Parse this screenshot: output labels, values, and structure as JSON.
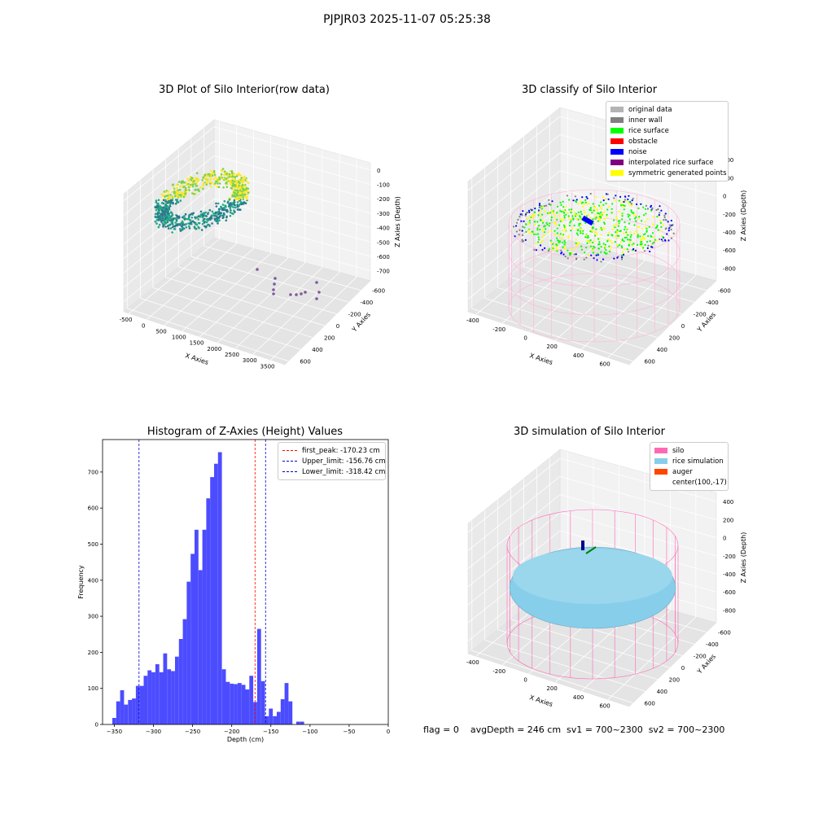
{
  "figure": {
    "suptitle": "PJPJR03 2025-11-07 05:25:38",
    "footer": "flag = 0    avgDepth = 246 cm  sv1 = 700~2300  sv2 = 700~2300"
  },
  "chart_data": [
    {
      "type": "scatter",
      "subtype": "3d",
      "title": "3D Plot of Silo Interior(row data)",
      "xlabel": "X Axies",
      "ylabel": "Y Axies",
      "zlabel": "Z Axies (Depth)",
      "x_ticks": [
        "-500",
        "0",
        "500",
        "1000",
        "1500",
        "2000",
        "2500",
        "3000",
        "3500"
      ],
      "y_ticks": [
        "-600",
        "-400",
        "-200",
        "0",
        "200",
        "400",
        "600"
      ],
      "z_ticks": [
        "0",
        "-100",
        "-200",
        "-300",
        "-400",
        "-500",
        "-600",
        "-700"
      ],
      "colormap": [
        "#fde725",
        "#7ad151",
        "#22a884",
        "#2a788e"
      ],
      "outlier_color": "#7e5a9b"
    },
    {
      "type": "scatter",
      "subtype": "3d",
      "title": "3D classify of Silo Interior",
      "xlabel": "X Axies",
      "ylabel": "Y Axies",
      "zlabel": "Z Axies (Depth)",
      "x_ticks": [
        "-400",
        "-200",
        "0",
        "200",
        "400",
        "600"
      ],
      "y_ticks": [
        "-600",
        "-400",
        "-200",
        "0",
        "200",
        "400",
        "600"
      ],
      "z_ticks": [
        "400",
        "200",
        "0",
        "-200",
        "-400",
        "-600",
        "-800"
      ],
      "legend": [
        {
          "name": "original data",
          "color": "#b3b3b3"
        },
        {
          "name": "inner wall",
          "color": "#808080"
        },
        {
          "name": "rice surface",
          "color": "#00ff00"
        },
        {
          "name": "obstacle",
          "color": "#ff0000"
        },
        {
          "name": "noise",
          "color": "#0000ff"
        },
        {
          "name": "interpolated rice surface",
          "color": "#800080"
        },
        {
          "name": "symmetric generated points",
          "color": "#ffff00"
        }
      ],
      "wire_color": "#ffb6d9"
    },
    {
      "type": "bar",
      "subtype": "histogram",
      "title": "Histogram of Z-Axies (Height) Values",
      "xlabel": "Depth (cm)",
      "ylabel": "Frequency",
      "xlim": [
        -365,
        0
      ],
      "ylim": [
        0,
        790
      ],
      "x_ticks": [
        -350,
        -300,
        -250,
        -200,
        -150,
        -100,
        -50,
        0
      ],
      "y_ticks": [
        0,
        100,
        200,
        300,
        400,
        500,
        600,
        700
      ],
      "bin_start": -352.5,
      "bin_width": 5,
      "values": [
        18,
        64,
        95,
        55,
        68,
        72,
        107,
        107,
        135,
        150,
        145,
        167,
        145,
        197,
        153,
        148,
        188,
        237,
        292,
        396,
        473,
        540,
        428,
        540,
        627,
        686,
        723,
        755,
        153,
        118,
        113,
        112,
        115,
        110,
        97,
        135,
        62,
        265,
        120,
        23,
        44,
        23,
        35,
        70,
        115,
        64,
        0,
        8,
        8
      ],
      "bar_color": "#4c4cff",
      "lines": [
        {
          "label": "first_peak: -170.23 cm",
          "x": -170.23,
          "color": "#ff0000"
        },
        {
          "label": "Upper_limit: -156.76 cm",
          "x": -156.76,
          "color": "#0000cc"
        },
        {
          "label": "Lower_limit: -318.42 cm",
          "x": -318.42,
          "color": "#0000cc"
        }
      ]
    },
    {
      "type": "scatter",
      "subtype": "3d",
      "title": "3D simulation of Silo Interior",
      "xlabel": "X Axies",
      "ylabel": "Y Axies",
      "zlabel": "Z Axies (Depth)",
      "x_ticks": [
        "-400",
        "-200",
        "0",
        "200",
        "400",
        "600"
      ],
      "y_ticks": [
        "-600",
        "-400",
        "-200",
        "0",
        "200",
        "400",
        "600"
      ],
      "z_ticks": [
        "400",
        "200",
        "0",
        "-200",
        "-400",
        "-600",
        "-800"
      ],
      "legend": [
        {
          "name": "silo",
          "color": "#ff69b4"
        },
        {
          "name": "rice simulation",
          "color": "#87ceeb"
        },
        {
          "name": "auger",
          "color": "#ff4500"
        },
        {
          "name": "center(100,-17)",
          "color": ""
        }
      ],
      "wire_color": "#ff69b4",
      "surface_color": "#87ceeb"
    }
  ]
}
